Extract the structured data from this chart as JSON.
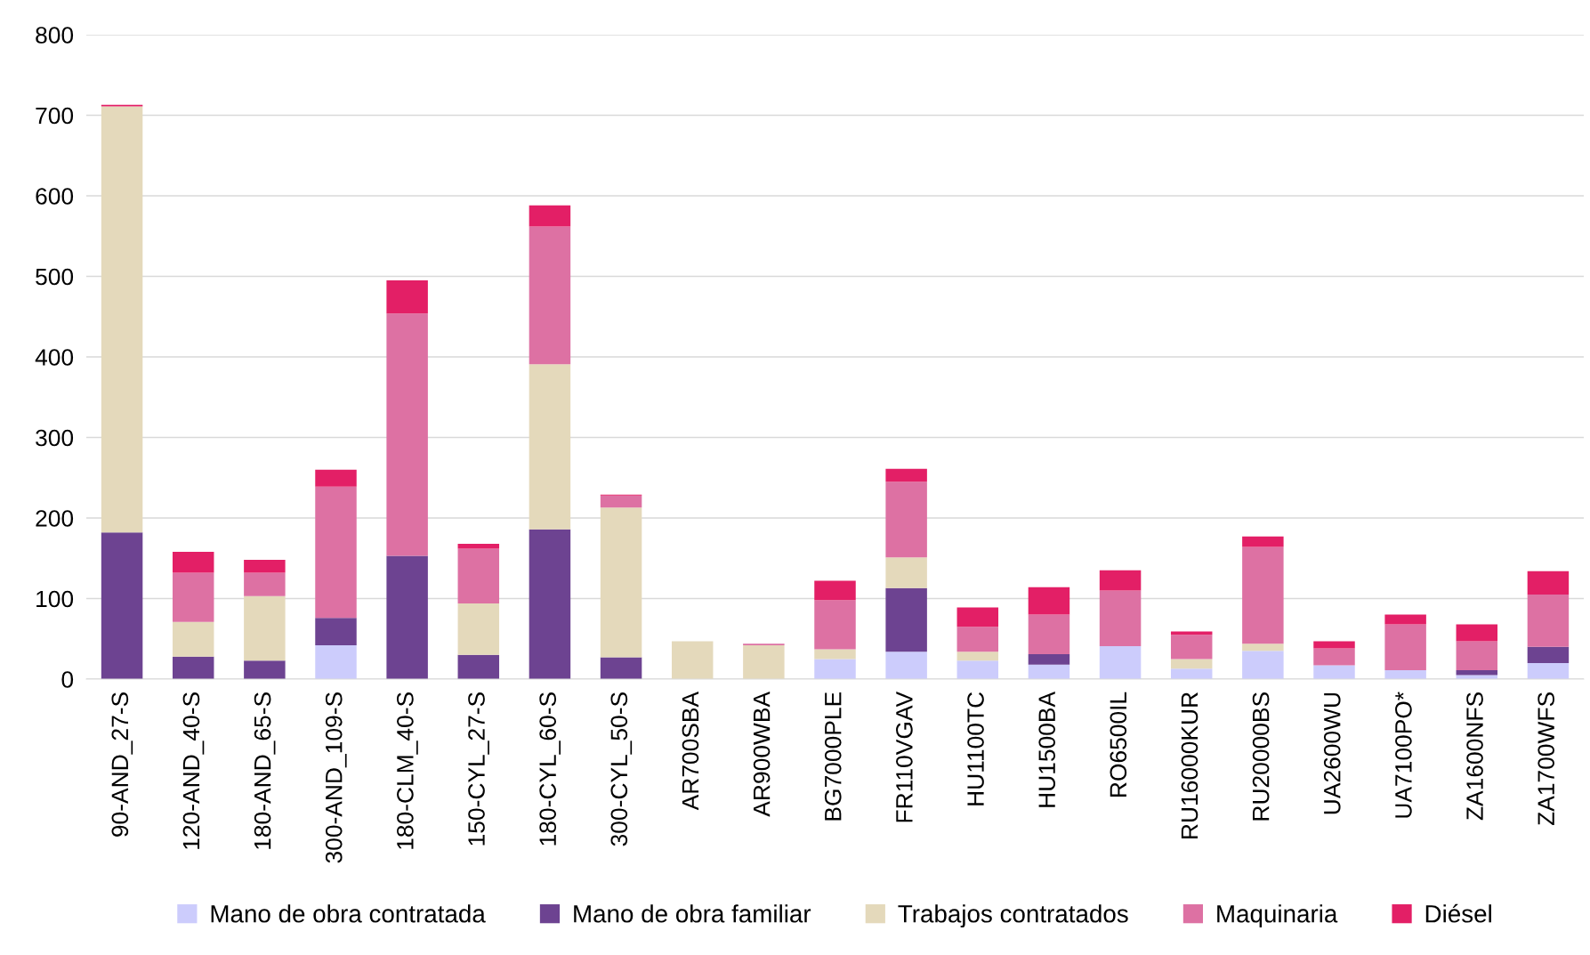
{
  "chart_data": {
    "type": "bar",
    "stacked": true,
    "legend": "bottom",
    "grid": "y",
    "categories": [
      "90-AND_27-S",
      "120-AND_40-S",
      "180-AND_65-S",
      "300-AND_109-S",
      "180-CLM_40-S",
      "150-CYL_27-S",
      "180-CYL_60-S",
      "300-CYL_50-S",
      "AR700SBA",
      "AR900WBA",
      "BG7000PLE",
      "FR110VGAV",
      "HU1100TC",
      "HU1500BA",
      "RO6500IL",
      "RU16000KUR",
      "RU20000BS",
      "UA2600WU",
      "UA7100PO*",
      "ZA1600NFS",
      "ZA1700WFS"
    ],
    "series": [
      {
        "name": "Mano de obra contratada",
        "color": "#ccccfc",
        "values": [
          0,
          0,
          0,
          42,
          0,
          0,
          0,
          0,
          0,
          0,
          25,
          34,
          23,
          18,
          41,
          13,
          35,
          17,
          11,
          5,
          20
        ]
      },
      {
        "name": "Mano de obra familiar",
        "color": "#6d4391",
        "values": [
          182,
          28,
          23,
          34,
          153,
          30,
          186,
          27,
          0,
          0,
          0,
          79,
          0,
          13,
          0,
          0,
          0,
          0,
          0,
          6,
          20
        ]
      },
      {
        "name": "Trabajos contratados",
        "color": "#e4d9bb",
        "values": [
          529,
          43,
          80,
          0,
          0,
          64,
          205,
          186,
          47,
          42,
          12,
          38,
          11,
          0,
          0,
          12,
          9,
          0,
          0,
          0,
          0
        ]
      },
      {
        "name": "Maquinaria",
        "color": "#dd71a3",
        "values": [
          0,
          61,
          29,
          163,
          301,
          68,
          171,
          15,
          0,
          2,
          61,
          94,
          31,
          49,
          69,
          30,
          120,
          21,
          57,
          36,
          65
        ]
      },
      {
        "name": "Diésel",
        "color": "#e31f66",
        "values": [
          2,
          26,
          16,
          21,
          41,
          6,
          26,
          1,
          0,
          0,
          24,
          16,
          24,
          34,
          25,
          4,
          13,
          9,
          12,
          21,
          29
        ]
      }
    ],
    "ylim": [
      0,
      800
    ],
    "yticks": [
      0,
      100,
      200,
      300,
      400,
      500,
      600,
      700,
      800
    ]
  }
}
